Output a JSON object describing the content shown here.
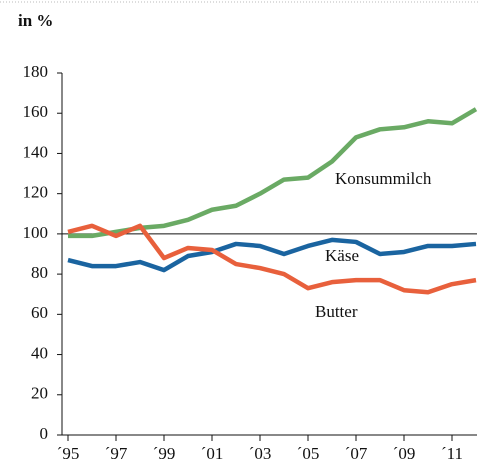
{
  "chart_data": {
    "type": "line",
    "ylabel": "in %",
    "categories": [
      "´95",
      null,
      "´97",
      null,
      "´99",
      null,
      "´01",
      null,
      "´03",
      null,
      "´05",
      null,
      "´07",
      null,
      "´09",
      null,
      "´11",
      null
    ],
    "series": [
      {
        "name": "Konsummilch",
        "color": "#6aaa64",
        "values": [
          99,
          99,
          101,
          103,
          104,
          107,
          112,
          114,
          120,
          127,
          128,
          136,
          148,
          152,
          153,
          156,
          155,
          162
        ]
      },
      {
        "name": "Käse",
        "color": "#1a64a0",
        "values": [
          87,
          84,
          84,
          86,
          82,
          89,
          91,
          95,
          94,
          90,
          94,
          97,
          96,
          90,
          91,
          94,
          94,
          95
        ]
      },
      {
        "name": "Butter",
        "color": "#e8603c",
        "values": [
          101,
          104,
          99,
          104,
          88,
          93,
          92,
          85,
          83,
          80,
          73,
          76,
          77,
          77,
          72,
          71,
          75,
          77
        ]
      }
    ],
    "ylim": [
      0,
      180
    ],
    "yticks": [
      0,
      20,
      40,
      60,
      80,
      100,
      120,
      140,
      160,
      180
    ],
    "reference_line": 100
  }
}
